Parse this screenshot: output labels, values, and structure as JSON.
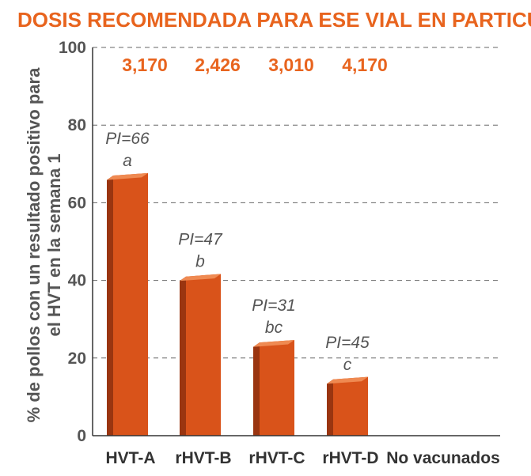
{
  "chart_data": {
    "type": "bar",
    "title": "DOSIS RECOMENDADA PARA ESE VIAL EN PARTICULAR",
    "ylabel_lines": [
      "% de pollos con un resultado positivo para",
      "el HVT en la semana 1"
    ],
    "ylim": [
      0,
      100
    ],
    "yticks": [
      "0",
      "20",
      "40",
      "60",
      "80",
      "100"
    ],
    "ytick_values": [
      0,
      20,
      40,
      60,
      80,
      100
    ],
    "grid": "horizontal dashed",
    "categories": [
      "HVT-A",
      "rHVT-B",
      "rHVT-C",
      "rHVT-D",
      "No vacunados"
    ],
    "values": [
      67,
      41,
      24,
      14.5,
      0
    ],
    "doses": [
      "3,170",
      "2,426",
      "3,010",
      "4,170"
    ],
    "pi_labels": [
      "PI=66",
      "PI=47",
      "PI=31",
      "PI=45"
    ],
    "significance_letters": [
      "a",
      "b",
      "bc",
      "c"
    ],
    "colors": {
      "bar_front": "#d9531a",
      "bar_side": "#9a3510",
      "bar_top": "#ef8a52",
      "accent": "#e8641e"
    }
  }
}
